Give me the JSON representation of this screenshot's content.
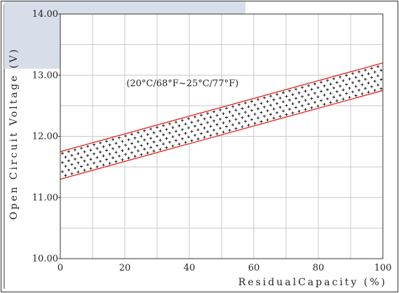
{
  "chart_data": {
    "type": "area",
    "xlabel": "ResidualCapacity (%)",
    "ylabel": "Open Circuit Voltage (V)",
    "annotation": "(20°C/68°F~25°C/77°F)",
    "xlim": [
      0,
      100
    ],
    "ylim": [
      10.0,
      14.0
    ],
    "x_ticks": [
      0,
      20,
      40,
      60,
      80,
      100
    ],
    "x_tick_labels": [
      "0",
      "20",
      "40",
      "60",
      "80",
      "100"
    ],
    "y_ticks": [
      10,
      11,
      12,
      13,
      14
    ],
    "y_tick_labels": [
      "10.00",
      "11.00",
      "12.00",
      "13.00",
      "14.00"
    ],
    "grid": true,
    "series": [
      {
        "role": "upper",
        "x": [
          0,
          100
        ],
        "y": [
          11.75,
          13.2
        ]
      },
      {
        "role": "lower",
        "x": [
          0,
          100
        ],
        "y": [
          11.3,
          12.75
        ]
      }
    ],
    "colors": {
      "band_line": "#ee1c1c",
      "band_fill_marks": "#111111",
      "frame": "#333333",
      "grid": "#c8c8c8",
      "corner_overlay": "#d7deea"
    }
  }
}
